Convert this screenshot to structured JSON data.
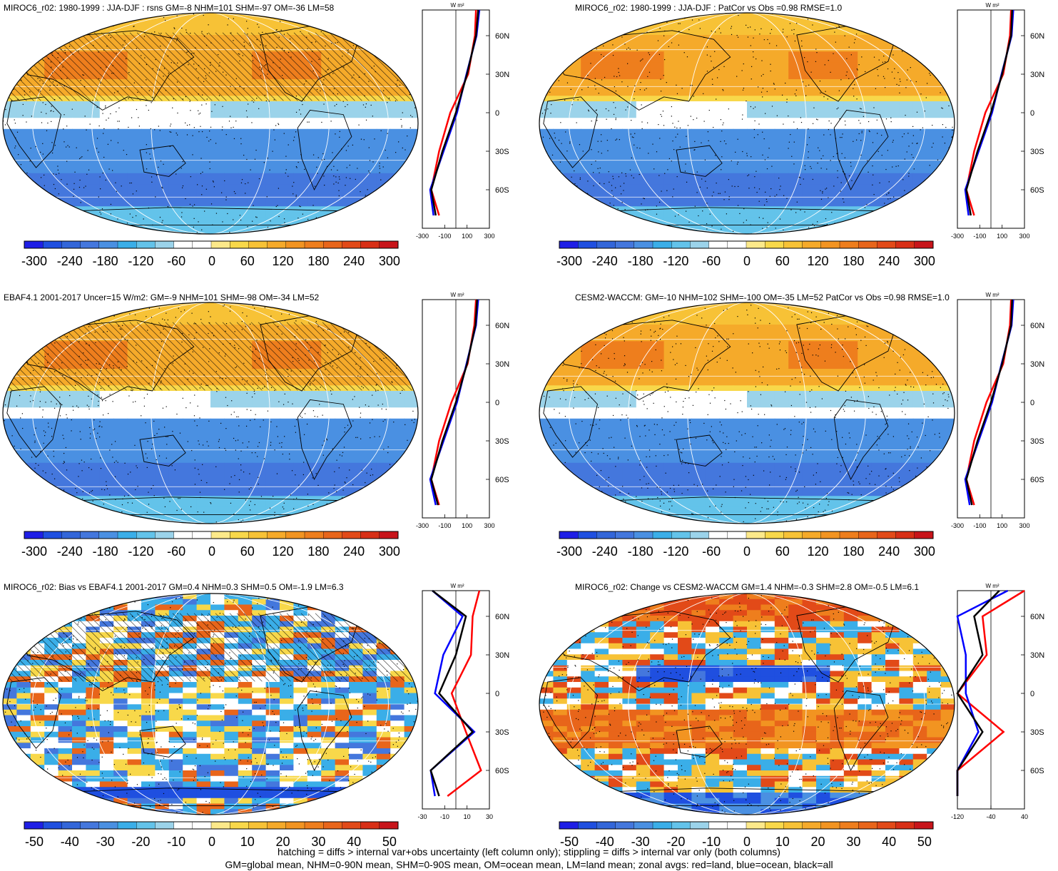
{
  "panels": [
    {
      "id": "p1",
      "title": "MIROC6_r02: 1980-1999 : JJA-DJF : rsns GM=-8 NHM=101 SHM=-97 OM=-36 LM=58",
      "kind": "clim",
      "hatch": true,
      "zonal_xticks": [
        "-300",
        "-100",
        "100",
        "300"
      ],
      "colorbar_labels": [
        "-300",
        "-240",
        "-180",
        "-120",
        "-60",
        "0",
        "60",
        "120",
        "180",
        "240",
        "300"
      ]
    },
    {
      "id": "p2",
      "title": "MIROC6_r02: 1980-1999 : JJA-DJF : PatCor vs Obs =0.98 RMSE=1.0",
      "kind": "clim",
      "hatch": false,
      "zonal_xticks": [
        "-300",
        "-100",
        "100",
        "300"
      ],
      "colorbar_labels": [
        "-300",
        "-240",
        "-180",
        "-120",
        "-60",
        "0",
        "60",
        "120",
        "180",
        "240",
        "300"
      ]
    },
    {
      "id": "p3",
      "title": "EBAF4.1 2001-2017 Uncer=15 W/m2: GM=-9 NHM=101 SHM=-98 OM=-34 LM=52",
      "kind": "clim",
      "hatch": true,
      "zonal_xticks": [
        "-300",
        "-100",
        "100",
        "300"
      ],
      "colorbar_labels": [
        "-300",
        "-240",
        "-180",
        "-120",
        "-60",
        "0",
        "60",
        "120",
        "180",
        "240",
        "300"
      ]
    },
    {
      "id": "p4",
      "title": "CESM2-WACCM: GM=-10 NHM=102 SHM=-100 OM=-35 LM=52 PatCor vs Obs =0.98 RMSE=1.0",
      "kind": "clim",
      "hatch": false,
      "zonal_xticks": [
        "-300",
        "-100",
        "100",
        "300"
      ],
      "colorbar_labels": [
        "-300",
        "-240",
        "-180",
        "-120",
        "-60",
        "0",
        "60",
        "120",
        "180",
        "240",
        "300"
      ]
    },
    {
      "id": "p5",
      "title": "MIROC6_r02: Bias vs EBAF4.1 2001-2017 GM=0.4 NHM=0.3 SHM=0.5 OM=-1.9 LM=6.3",
      "kind": "diff",
      "hatch": true,
      "zonal_xticks": [
        "-30",
        "-10",
        "10",
        "30"
      ],
      "colorbar_labels": [
        "-50",
        "-40",
        "-30",
        "-20",
        "-10",
        "0",
        "10",
        "20",
        "30",
        "40",
        "50"
      ]
    },
    {
      "id": "p6",
      "title": "MIROC6_r02: Change vs CESM2-WACCM GM=1.4 NHM=-0.3 SHM=2.8 OM=-0.5 LM=6.1",
      "kind": "diff2",
      "hatch": false,
      "zonal_xticks": [
        "-120",
        "-40",
        "40"
      ],
      "colorbar_labels": [
        "-50",
        "-40",
        "-30",
        "-20",
        "-10",
        "0",
        "10",
        "20",
        "30",
        "40",
        "50"
      ]
    }
  ],
  "zonal_units": "W m²",
  "lat_labels": [
    "60N",
    "30N",
    "0",
    "30S",
    "60S"
  ],
  "colors": {
    "colorbar": [
      "#1e1ee6",
      "#1f4fe0",
      "#3366d9",
      "#4477dd",
      "#4a90e2",
      "#3aaee8",
      "#63c3ea",
      "#9bd3ea",
      "#ffffff",
      "#ffffff",
      "#fce98a",
      "#f8d84a",
      "#f7c236",
      "#f5aa2a",
      "#f29421",
      "#ee7e1d",
      "#e8651a",
      "#e24a18",
      "#d82f16",
      "#c8141a"
    ],
    "land_line": "#ff0000",
    "ocean_line": "#0000ff",
    "all_line": "#000000"
  },
  "footer": {
    "line1": "hatching = diffs > internal var+obs uncertainty (left column only); stippling = diffs > internal var only (both columns)",
    "line2": "GM=global mean, NHM=0-90N mean, SHM=0-90S mean, OM=ocean mean, LM=land mean; zonal avgs: red=land, blue=ocean, black=all"
  },
  "chart_data": [
    {
      "type": "heatmap",
      "title": "MIROC6_r02: 1980-1999 : JJA-DJF : rsns GM=-8 NHM=101 SHM=-97 OM=-36 LM=58",
      "ylabel": "",
      "zonal_mean": {
        "lat": [
          80,
          60,
          30,
          0,
          -30,
          -60,
          -80
        ],
        "all": [
          200,
          180,
          100,
          0,
          -120,
          -220,
          -180
        ],
        "land": [
          180,
          170,
          110,
          -50,
          -150,
          -220,
          -150
        ],
        "ocean": [
          210,
          185,
          95,
          10,
          -110,
          -230,
          -200
        ]
      }
    },
    {
      "type": "heatmap",
      "title": "MIROC6_r02: 1980-1999 : JJA-DJF : PatCor vs Obs =0.98 RMSE=1.0",
      "zonal_mean": {
        "lat": [
          80,
          60,
          30,
          0,
          -30,
          -60,
          -80
        ],
        "all": [
          190,
          180,
          100,
          0,
          -120,
          -220,
          -180
        ],
        "land": [
          180,
          170,
          110,
          -50,
          -150,
          -220,
          -150
        ],
        "ocean": [
          200,
          185,
          95,
          10,
          -110,
          -230,
          -200
        ]
      }
    },
    {
      "type": "heatmap",
      "title": "EBAF4.1 2001-2017 Uncer=15 W/m2: GM=-9 NHM=101 SHM=-98 OM=-34 LM=52",
      "zonal_mean": {
        "lat": [
          80,
          60,
          30,
          0,
          -30,
          -60,
          -80
        ],
        "all": [
          190,
          175,
          100,
          0,
          -120,
          -220,
          -160
        ],
        "land": [
          180,
          165,
          105,
          -40,
          -150,
          -220,
          -150
        ],
        "ocean": [
          200,
          180,
          95,
          10,
          -110,
          -230,
          -180
        ]
      }
    },
    {
      "type": "heatmap",
      "title": "CESM2-WACCM: GM=-10 NHM=102 SHM=-100 OM=-35 LM=52 PatCor vs Obs =0.98 RMSE=1.0",
      "zonal_mean": {
        "lat": [
          80,
          60,
          30,
          0,
          -30,
          -60,
          -80
        ],
        "all": [
          190,
          180,
          100,
          0,
          -120,
          -220,
          -170
        ],
        "land": [
          180,
          170,
          110,
          -40,
          -150,
          -220,
          -150
        ],
        "ocean": [
          200,
          185,
          95,
          10,
          -110,
          -230,
          -190
        ]
      }
    },
    {
      "type": "heatmap",
      "title": "MIROC6_r02: Bias vs EBAF4.1 2001-2017 GM=0.4 NHM=0.3 SHM=0.5 OM=-1.9 LM=6.3",
      "zonal_mean": {
        "lat": [
          80,
          60,
          30,
          0,
          -30,
          -60,
          -80
        ],
        "all": [
          -28,
          12,
          0,
          -20,
          20,
          -30,
          -20
        ],
        "land": [
          28,
          20,
          18,
          -5,
          12,
          30,
          -10
        ],
        "ocean": [
          -28,
          8,
          -15,
          -25,
          22,
          -30,
          -25
        ]
      }
    },
    {
      "type": "heatmap",
      "title": "MIROC6_r02: Change vs CESM2-WACCM GM=1.4 NHM=-0.3 SHM=2.8 OM=-0.5 LM=6.1",
      "zonal_mean": {
        "lat": [
          80,
          60,
          30,
          0,
          -30,
          -60,
          -80
        ],
        "all": [
          10,
          -20,
          -10,
          -40,
          -10,
          -40,
          -80
        ],
        "land": [
          40,
          -10,
          -5,
          -50,
          15,
          -60,
          -120
        ],
        "ocean": [
          20,
          -40,
          -30,
          -30,
          -15,
          -40,
          -140
        ]
      }
    }
  ]
}
